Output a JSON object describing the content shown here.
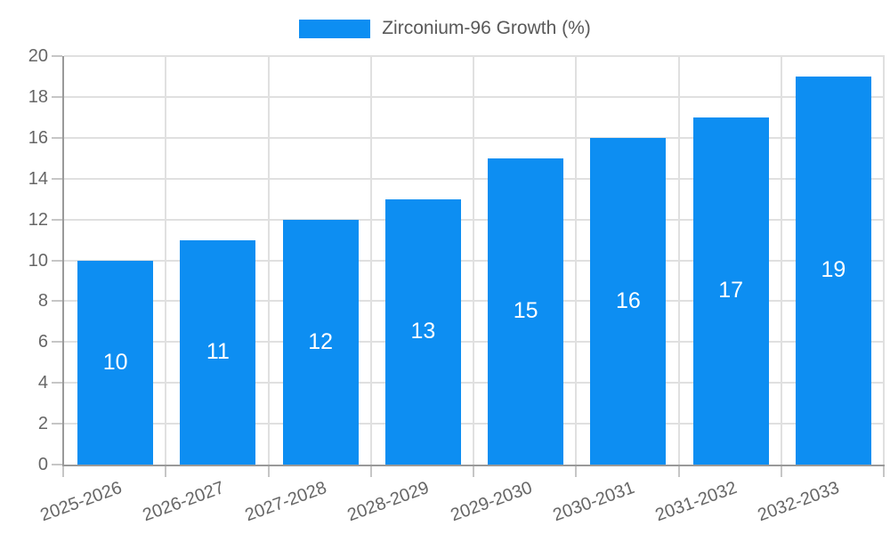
{
  "chart_data": {
    "type": "bar",
    "title": "",
    "legend_label": "Zirconium-96 Growth (%)",
    "legend_position": "top-center",
    "categories": [
      "2025-2026",
      "2026-2027",
      "2027-2028",
      "2028-2029",
      "2029-2030",
      "2030-2031",
      "2031-2032",
      "2032-2033"
    ],
    "values": [
      10,
      11,
      12,
      13,
      15,
      16,
      17,
      19
    ],
    "value_labels": [
      "10",
      "11",
      "12",
      "13",
      "15",
      "16",
      "17",
      "19"
    ],
    "xlabel": "",
    "ylabel": "",
    "ylim": [
      0,
      20
    ],
    "ytick_step": 2,
    "ytick_labels": [
      "0",
      "2",
      "4",
      "6",
      "8",
      "10",
      "12",
      "14",
      "16",
      "18",
      "20"
    ],
    "grid": true,
    "bar_color": "#0d8ef2",
    "value_label_color": "#ffffff",
    "axis_text_color": "#666666",
    "legend_text_color": "#595959",
    "gridline_color": "#e0e0e0",
    "axis_line_color": "#999999"
  }
}
